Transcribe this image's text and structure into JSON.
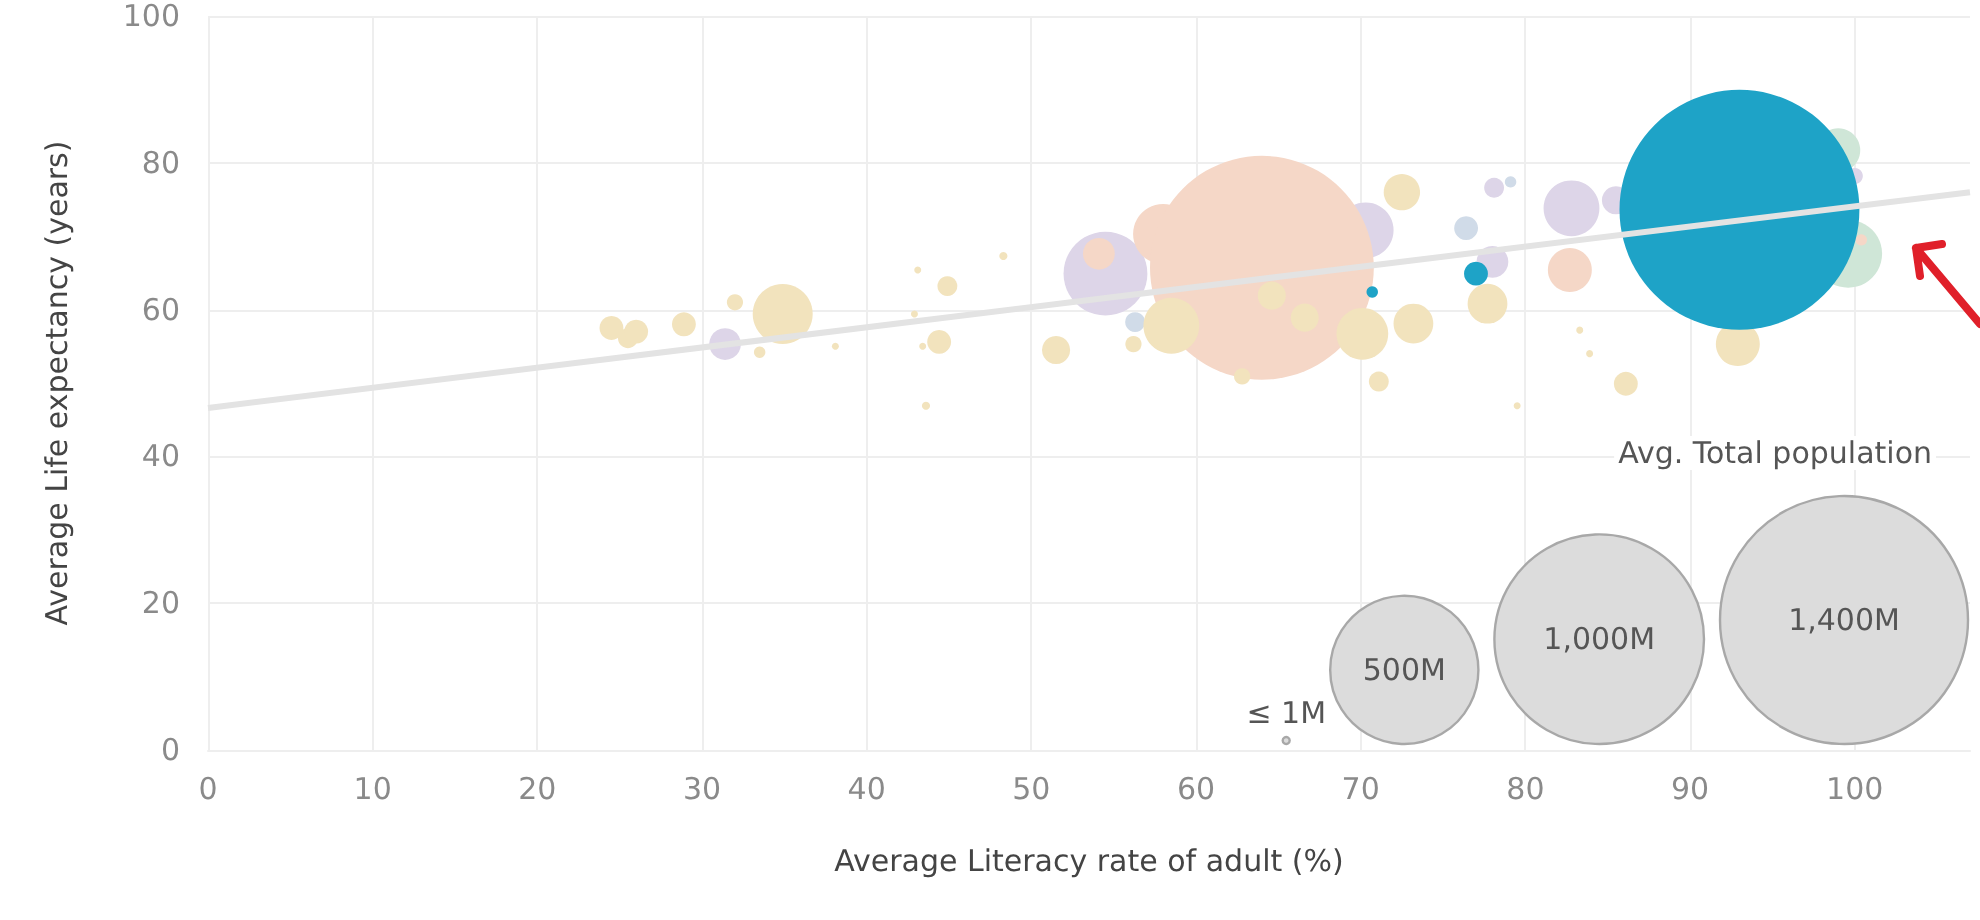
{
  "chart_data": {
    "type": "bubble",
    "xlabel": "Average Literacy rate of adult (%)",
    "ylabel": "Average Life expectancy (years)",
    "legend_title": "Avg. Total population",
    "size_legend": [
      {
        "value": 1,
        "label": "≤ 1M"
      },
      {
        "value": 500,
        "label": "500M"
      },
      {
        "value": 1000,
        "label": "1,000M"
      },
      {
        "value": 1400,
        "label": "1,400M"
      }
    ],
    "xlim": [
      0,
      107
    ],
    "xticks": [
      0,
      10,
      20,
      30,
      40,
      50,
      60,
      70,
      80,
      90,
      100
    ],
    "ylim": [
      0,
      100
    ],
    "yticks": [
      0,
      20,
      40,
      60,
      80,
      100
    ],
    "grid": true,
    "series": [
      {
        "color": "#ddd5e8",
        "x": [
          31.4,
          54.5,
          70.3,
          78.1,
          78,
          82.8,
          85.5,
          100
        ],
        "values": [
          55.3,
          64.9,
          70.8,
          76.6,
          66.5,
          73.8,
          74.9,
          78.2
        ],
        "sizes": [
          23,
          160,
          71,
          9,
          23,
          71,
          18,
          6
        ]
      },
      {
        "color": "#cfe6d7",
        "x": [
          99.6,
          99
        ],
        "values": [
          67.6,
          81.7
        ],
        "sizes": [
          105,
          44
        ]
      },
      {
        "color": "#f5d7c7",
        "x": [
          58,
          64.0,
          54.1,
          82.7,
          100.4
        ],
        "values": [
          70.3,
          65.7,
          67.6,
          65.4,
          69.5
        ],
        "sizes": [
          82,
          1140,
          23,
          44,
          3
        ]
      },
      {
        "color": "#d0dbe8",
        "x": [
          56.3,
          76.4,
          79.1
        ],
        "values": [
          58.3,
          71.1,
          77.4
        ],
        "sizes": [
          9,
          13,
          3
        ]
      },
      {
        "color": "#f2e3bd",
        "x": [
          24.5,
          25.5,
          26,
          28.9,
          32,
          33.5,
          34.9,
          38.1,
          44.9,
          44.4,
          43.6,
          42.9,
          43.4,
          43.1,
          51.5,
          56.2,
          48.3,
          58.5,
          64.6,
          66.6,
          62.8,
          70.1,
          71.1,
          72.5,
          73.2,
          77.7,
          79.5,
          83.3,
          83.9,
          86.1,
          92.9
        ],
        "values": [
          57.5,
          56.1,
          57,
          58,
          61,
          54.2,
          59.4,
          55,
          63.2,
          55.6,
          46.9,
          59.4,
          55,
          65.4,
          54.5,
          55.3,
          67.3,
          57.8,
          61.9,
          58.9,
          50.9,
          56.7,
          50.2,
          76,
          58.1,
          60.8,
          46.9,
          57.2,
          54,
          49.9,
          55.3
        ],
        "sizes": [
          13,
          9,
          13,
          13,
          6,
          3,
          82,
          0.5,
          9,
          13,
          1.5,
          1,
          0.5,
          1,
          18,
          6,
          1.5,
          71,
          18,
          18,
          6,
          61,
          9,
          30,
          36,
          36,
          0.5,
          1,
          1,
          13,
          44
        ]
      },
      {
        "color": "#1ea3c7",
        "x": [
          70.7,
          77,
          93
        ],
        "values": [
          62.4,
          64.9,
          73.6
        ],
        "sizes": [
          3,
          13,
          1310
        ]
      },
      {
        "type": "line",
        "color": "#e3e3e3",
        "x": [
          0,
          107
        ],
        "values": [
          46.6,
          76
        ]
      }
    ]
  }
}
